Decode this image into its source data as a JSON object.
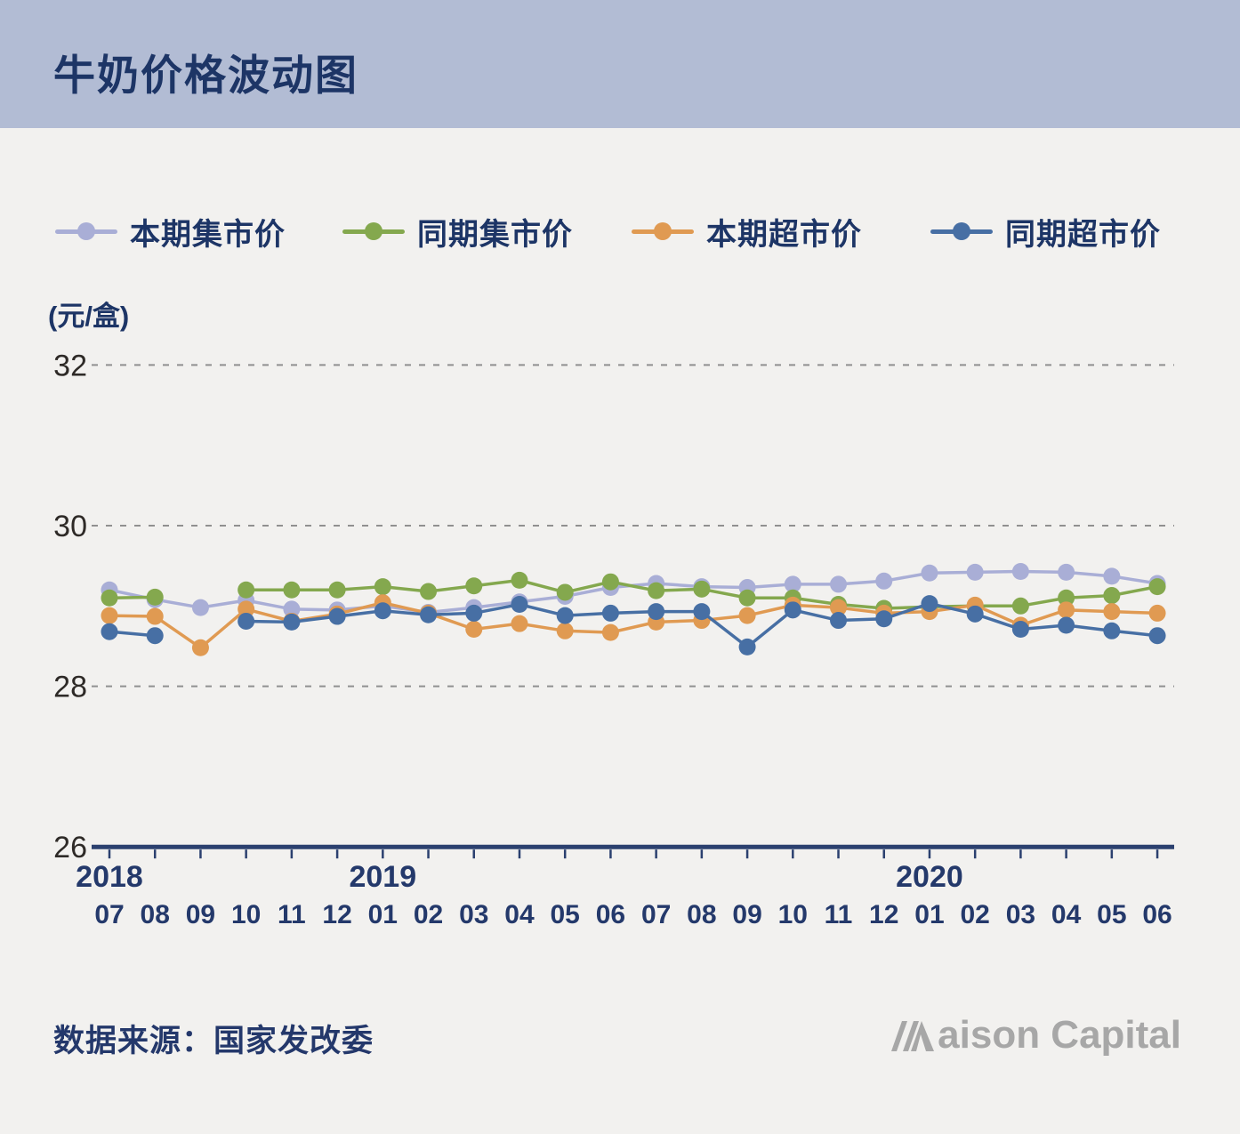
{
  "header": {
    "title": "牛奶价格波动图"
  },
  "footer": {
    "source": "数据来源：国家发改委",
    "logo_name": "Maison Capital"
  },
  "chart_data": {
    "type": "line",
    "title": "牛奶价格波动图",
    "unit_label": "(元/盒)",
    "ylim": [
      26,
      32
    ],
    "yticks": [
      26,
      28,
      30,
      32
    ],
    "grid": "dashed-horizontal",
    "legend_position": "top",
    "months": [
      "07",
      "08",
      "09",
      "10",
      "11",
      "12",
      "01",
      "02",
      "03",
      "04",
      "05",
      "06",
      "07",
      "08",
      "09",
      "10",
      "11",
      "12",
      "01",
      "02",
      "03",
      "04",
      "05",
      "06"
    ],
    "years": [
      {
        "label": "2018",
        "month_index": 0
      },
      {
        "label": "2019",
        "month_index": 6
      },
      {
        "label": "2020",
        "month_index": 18
      }
    ],
    "series": [
      {
        "name": "本期集市价",
        "color": "#a9aed6",
        "values": [
          29.2,
          29.08,
          28.98,
          29.07,
          28.96,
          28.95,
          29.0,
          28.92,
          28.98,
          29.05,
          29.12,
          29.23,
          29.28,
          29.24,
          29.23,
          29.27,
          29.27,
          29.31,
          29.41,
          29.42,
          29.43,
          29.42,
          29.37,
          29.28
        ]
      },
      {
        "name": "同期集市价",
        "color": "#84a84e",
        "values": [
          29.1,
          29.11,
          null,
          29.2,
          29.2,
          29.2,
          29.24,
          29.18,
          29.25,
          29.32,
          29.17,
          29.3,
          29.19,
          29.21,
          29.1,
          29.1,
          29.02,
          28.97,
          28.99,
          29.0,
          29.0,
          29.1,
          29.13,
          29.24
        ]
      },
      {
        "name": "本期超市价",
        "color": "#e09a52",
        "values": [
          28.88,
          28.87,
          28.48,
          28.96,
          28.81,
          28.9,
          29.04,
          28.91,
          28.71,
          28.78,
          28.69,
          28.67,
          28.8,
          28.82,
          28.88,
          29.01,
          28.98,
          28.91,
          28.93,
          29.01,
          28.76,
          28.95,
          28.93,
          28.91
        ]
      },
      {
        "name": "同期超市价",
        "color": "#476fa4",
        "values": [
          28.68,
          28.63,
          null,
          28.81,
          28.8,
          28.87,
          28.94,
          28.89,
          28.91,
          29.02,
          28.88,
          28.91,
          28.93,
          28.93,
          28.49,
          28.95,
          28.82,
          28.84,
          29.03,
          28.9,
          28.71,
          28.76,
          28.69,
          28.63
        ]
      }
    ],
    "style": {
      "axis_color": "#2b406f",
      "gridline_color": "#909090",
      "ytick_text_color": "#2e2a27",
      "xtick_text_color": "#24396b",
      "header_band_color": "#b2bcd4",
      "background_color": "#f2f1ef"
    }
  }
}
